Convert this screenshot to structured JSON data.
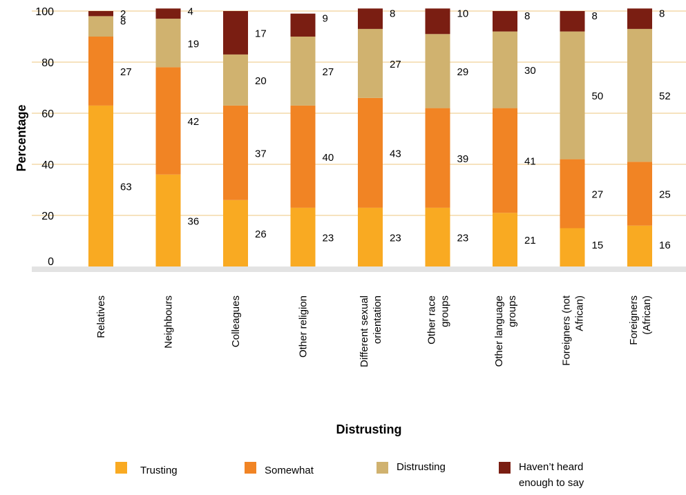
{
  "chart_data": {
    "type": "bar",
    "stacked": true,
    "title": "",
    "xlabel": "Distrusting",
    "ylabel": "Percentage",
    "ylim": [
      0,
      100
    ],
    "yticks": [
      0,
      20,
      40,
      60,
      80,
      100
    ],
    "grid": true,
    "legend_position": "bottom",
    "categories": [
      [
        "Relatives"
      ],
      [
        "Neighbours"
      ],
      [
        "Colleagues"
      ],
      [
        "Other religion"
      ],
      [
        "Different sexual",
        "orientation"
      ],
      [
        "Other race",
        "groups"
      ],
      [
        "Other language",
        "groups"
      ],
      [
        "Foreigners (not",
        "African)"
      ],
      [
        "Foreigners",
        "(African)"
      ]
    ],
    "series": [
      {
        "name": "Trusting",
        "color": "#F9AA22",
        "values": [
          63,
          36,
          26,
          23,
          23,
          23,
          21,
          15,
          16
        ]
      },
      {
        "name": "Somewhat",
        "color": "#F18424",
        "values": [
          27,
          42,
          37,
          40,
          43,
          39,
          41,
          27,
          25
        ]
      },
      {
        "name": "Distrusting",
        "color": "#D0B26F",
        "values": [
          8,
          19,
          20,
          27,
          27,
          29,
          30,
          50,
          52
        ]
      },
      {
        "name": "Haven’t heard enough to say",
        "color": "#7A1E12",
        "values": [
          2,
          4,
          17,
          9,
          8,
          10,
          8,
          8,
          8
        ]
      }
    ],
    "legend_lines": [
      [
        "Trusting"
      ],
      [
        "Somewhat"
      ],
      [
        "Distrusting"
      ],
      [
        "Haven’t heard",
        "enough to say"
      ]
    ]
  },
  "colors": {
    "grid": "#F3D9A8",
    "baseline": "#E3E3E3"
  }
}
